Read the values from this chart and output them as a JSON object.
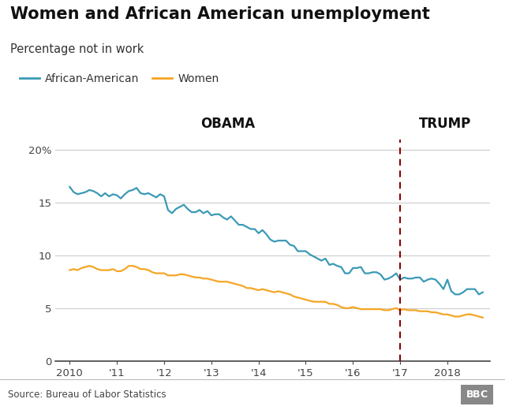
{
  "title": "Women and African American unemployment",
  "subtitle": "Percentage not in work",
  "source": "Source: Bureau of Labor Statistics",
  "bbc_label": "BBC",
  "obama_label": "OBAMA",
  "trump_label": "TRUMP",
  "divider_x": 2017.0,
  "colors": {
    "african_american": "#3a9ab5",
    "women": "#f5a623",
    "divider": "#8b0000",
    "background": "#ffffff",
    "grid": "#cccccc",
    "axis_line": "#555555",
    "footer_bg": "#e8e8e8"
  },
  "ylim": [
    0,
    21
  ],
  "yticks": [
    0,
    5,
    10,
    15,
    20
  ],
  "ytick_labels": [
    "0",
    "5",
    "10",
    "15",
    "20%"
  ],
  "african_american_label": "African-American",
  "women_label": "Women",
  "african_american_dates": [
    2010.0,
    2010.083,
    2010.167,
    2010.25,
    2010.333,
    2010.417,
    2010.5,
    2010.583,
    2010.667,
    2010.75,
    2010.833,
    2010.917,
    2011.0,
    2011.083,
    2011.167,
    2011.25,
    2011.333,
    2011.417,
    2011.5,
    2011.583,
    2011.667,
    2011.75,
    2011.833,
    2011.917,
    2012.0,
    2012.083,
    2012.167,
    2012.25,
    2012.333,
    2012.417,
    2012.5,
    2012.583,
    2012.667,
    2012.75,
    2012.833,
    2012.917,
    2013.0,
    2013.083,
    2013.167,
    2013.25,
    2013.333,
    2013.417,
    2013.5,
    2013.583,
    2013.667,
    2013.75,
    2013.833,
    2013.917,
    2014.0,
    2014.083,
    2014.167,
    2014.25,
    2014.333,
    2014.417,
    2014.5,
    2014.583,
    2014.667,
    2014.75,
    2014.833,
    2014.917,
    2015.0,
    2015.083,
    2015.167,
    2015.25,
    2015.333,
    2015.417,
    2015.5,
    2015.583,
    2015.667,
    2015.75,
    2015.833,
    2015.917,
    2016.0,
    2016.083,
    2016.167,
    2016.25,
    2016.333,
    2016.417,
    2016.5,
    2016.583,
    2016.667,
    2016.75,
    2016.833,
    2016.917,
    2017.0,
    2017.083,
    2017.167,
    2017.25,
    2017.333,
    2017.417,
    2017.5,
    2017.583,
    2017.667,
    2017.75,
    2017.833,
    2017.917,
    2018.0,
    2018.083,
    2018.167,
    2018.25,
    2018.333,
    2018.417,
    2018.5,
    2018.583,
    2018.667,
    2018.75
  ],
  "african_american_values": [
    16.5,
    16.0,
    15.8,
    15.9,
    16.0,
    16.2,
    16.1,
    15.9,
    15.6,
    15.9,
    15.6,
    15.8,
    15.7,
    15.4,
    15.8,
    16.1,
    16.2,
    16.4,
    15.9,
    15.8,
    15.9,
    15.7,
    15.5,
    15.8,
    15.6,
    14.3,
    14.0,
    14.4,
    14.6,
    14.8,
    14.4,
    14.1,
    14.1,
    14.3,
    14.0,
    14.2,
    13.8,
    13.9,
    13.9,
    13.6,
    13.4,
    13.7,
    13.3,
    12.9,
    12.9,
    12.7,
    12.5,
    12.5,
    12.1,
    12.4,
    12.0,
    11.5,
    11.3,
    11.4,
    11.4,
    11.4,
    11.0,
    10.9,
    10.4,
    10.4,
    10.4,
    10.1,
    9.9,
    9.7,
    9.5,
    9.7,
    9.1,
    9.2,
    9.0,
    8.9,
    8.3,
    8.3,
    8.8,
    8.8,
    8.9,
    8.3,
    8.3,
    8.4,
    8.4,
    8.2,
    7.7,
    7.8,
    8.0,
    8.3,
    7.7,
    7.9,
    7.8,
    7.8,
    7.9,
    7.9,
    7.5,
    7.7,
    7.8,
    7.7,
    7.3,
    6.8,
    7.7,
    6.6,
    6.3,
    6.3,
    6.5,
    6.8,
    6.8,
    6.8,
    6.3,
    6.5
  ],
  "women_dates": [
    2010.0,
    2010.083,
    2010.167,
    2010.25,
    2010.333,
    2010.417,
    2010.5,
    2010.583,
    2010.667,
    2010.75,
    2010.833,
    2010.917,
    2011.0,
    2011.083,
    2011.167,
    2011.25,
    2011.333,
    2011.417,
    2011.5,
    2011.583,
    2011.667,
    2011.75,
    2011.833,
    2011.917,
    2012.0,
    2012.083,
    2012.167,
    2012.25,
    2012.333,
    2012.417,
    2012.5,
    2012.583,
    2012.667,
    2012.75,
    2012.833,
    2012.917,
    2013.0,
    2013.083,
    2013.167,
    2013.25,
    2013.333,
    2013.417,
    2013.5,
    2013.583,
    2013.667,
    2013.75,
    2013.833,
    2013.917,
    2014.0,
    2014.083,
    2014.167,
    2014.25,
    2014.333,
    2014.417,
    2014.5,
    2014.583,
    2014.667,
    2014.75,
    2014.833,
    2014.917,
    2015.0,
    2015.083,
    2015.167,
    2015.25,
    2015.333,
    2015.417,
    2015.5,
    2015.583,
    2015.667,
    2015.75,
    2015.833,
    2015.917,
    2016.0,
    2016.083,
    2016.167,
    2016.25,
    2016.333,
    2016.417,
    2016.5,
    2016.583,
    2016.667,
    2016.75,
    2016.833,
    2016.917,
    2017.0,
    2017.083,
    2017.167,
    2017.25,
    2017.333,
    2017.417,
    2017.5,
    2017.583,
    2017.667,
    2017.75,
    2017.833,
    2017.917,
    2018.0,
    2018.083,
    2018.167,
    2018.25,
    2018.333,
    2018.417,
    2018.5,
    2018.583,
    2018.667,
    2018.75
  ],
  "women_values": [
    8.6,
    8.7,
    8.6,
    8.8,
    8.9,
    9.0,
    8.9,
    8.7,
    8.6,
    8.6,
    8.6,
    8.7,
    8.5,
    8.5,
    8.7,
    9.0,
    9.0,
    8.9,
    8.7,
    8.7,
    8.6,
    8.4,
    8.3,
    8.3,
    8.3,
    8.1,
    8.1,
    8.1,
    8.2,
    8.2,
    8.1,
    8.0,
    7.9,
    7.9,
    7.8,
    7.8,
    7.7,
    7.6,
    7.5,
    7.5,
    7.5,
    7.4,
    7.3,
    7.2,
    7.1,
    6.9,
    6.9,
    6.8,
    6.7,
    6.8,
    6.7,
    6.6,
    6.5,
    6.6,
    6.5,
    6.4,
    6.3,
    6.1,
    6.0,
    5.9,
    5.8,
    5.7,
    5.6,
    5.6,
    5.6,
    5.6,
    5.4,
    5.4,
    5.3,
    5.1,
    5.0,
    5.0,
    5.1,
    5.0,
    4.9,
    4.9,
    4.9,
    4.9,
    4.9,
    4.9,
    4.8,
    4.8,
    4.9,
    5.0,
    4.8,
    4.9,
    4.8,
    4.8,
    4.8,
    4.7,
    4.7,
    4.7,
    4.6,
    4.6,
    4.5,
    4.4,
    4.4,
    4.3,
    4.2,
    4.2,
    4.3,
    4.4,
    4.4,
    4.3,
    4.2,
    4.1
  ],
  "xticks": [
    2010,
    2011,
    2012,
    2013,
    2014,
    2015,
    2016,
    2017,
    2018
  ],
  "xtick_labels": [
    "2010",
    "'11",
    "'12",
    "'13",
    "'14",
    "'15",
    "'16",
    "'17",
    "2018"
  ],
  "xlim": [
    2009.7,
    2018.9
  ]
}
